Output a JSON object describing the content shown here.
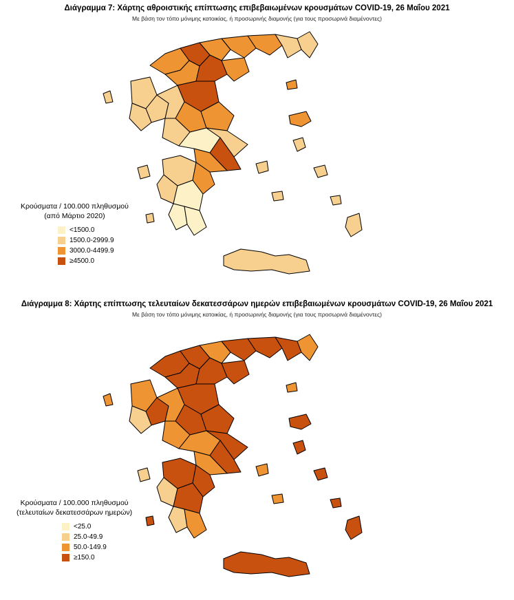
{
  "colors": {
    "c1": "#fdf2c7",
    "c2": "#f7cf8f",
    "c3": "#ef9433",
    "c4": "#c8510f",
    "border": "#000000"
  },
  "map1": {
    "title": "Διάγραμμα 7: Χάρτης αθροιστικής επίπτωσης επιβεβαιωμένων κρουσμάτων COVID-19, 26 Μαΐου 2021",
    "subtitle": "Με βάση τον τόπο μόνιμης κατοικίας, ή προσωρινής διαμονής (για τους προσωρινά διαμένοντες)",
    "legend": {
      "title_line1": "Κρούσματα / 100.000 πληθυσμού",
      "title_line2": "(από Μάρτιο 2020)",
      "items": [
        {
          "label": "<1500.0",
          "color": "#fdf2c7"
        },
        {
          "label": "1500.0-2999.9",
          "color": "#f7cf8f"
        },
        {
          "label": "3000.0-4499.9",
          "color": "#ef9433"
        },
        {
          "label": "≥4500.0",
          "color": "#c8510f"
        }
      ]
    }
  },
  "map2": {
    "title": "Διάγραμμα 8: Χάρτης επίπτωσης τελευταίων δεκατεσσάρων ημερών επιβεβαιωμένων κρουσμάτων COVID-19, 26 Μαΐου 2021",
    "subtitle": "Με βάση τον τόπο μόνιμης κατοικίας, ή προσωρινής διαμονής (για τους προσωρινά διαμένοντες)",
    "legend": {
      "title_line1": "Κρούσματα / 100.000 πληθυσμού",
      "title_line2": "(τελευταίων δεκατεσσάρων ημερών)",
      "items": [
        {
          "label": "<25.0",
          "color": "#fdf2c7"
        },
        {
          "label": "25.0-49.9",
          "color": "#f7cf8f"
        },
        {
          "label": "50.0-149.9",
          "color": "#ef9433"
        },
        {
          "label": "≥150.0",
          "color": "#c8510f"
        }
      ]
    }
  }
}
